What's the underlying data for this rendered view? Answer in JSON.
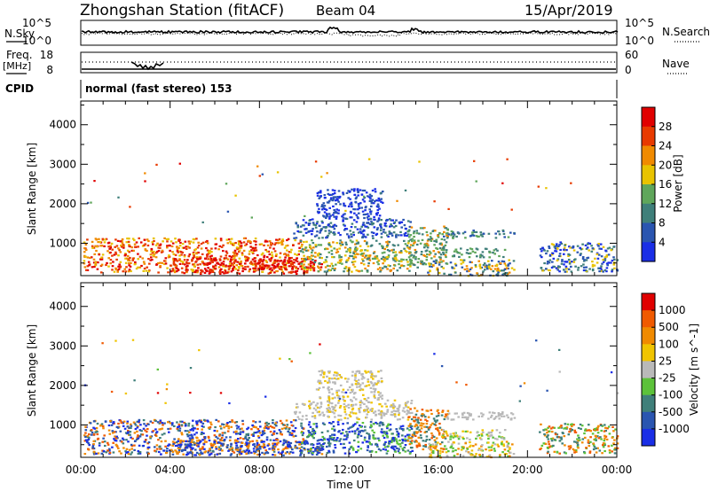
{
  "header": {
    "station": "Zhongshan Station (fitACF)",
    "beam": "Beam 04",
    "date": "15/Apr/2019"
  },
  "top_panels": {
    "nsky_label": "N.Sky",
    "nsearch_label": "N.Search",
    "freq_label": "Freq.",
    "freq_unit": "[MHz]",
    "nave_label": "Nave",
    "cpid_label": "CPID",
    "cpid_text": "normal (fast stereo) 153",
    "noise_ticks_left": [
      "10^5",
      "10^0"
    ],
    "noise_ticks_right": [
      "10^5",
      "10^0"
    ],
    "freq_ticks": [
      "18",
      "8"
    ],
    "nave_ticks": [
      "60",
      "0"
    ]
  },
  "chart_data": [
    {
      "type": "heatmap",
      "name": "power",
      "ylabel": "Slant Range [km]",
      "xlabel": "",
      "yticks": [
        "1000",
        "2000",
        "3000",
        "4000"
      ],
      "ylim": [
        180,
        4600
      ],
      "xlim": [
        0,
        24
      ],
      "colorbar": {
        "label": "Power [dB]",
        "ticks": [
          "4",
          "8",
          "12",
          "16",
          "20",
          "24",
          "28"
        ],
        "colors": [
          "#1a2ee6",
          "#2a55b0",
          "#3f7f7a",
          "#5fa65b",
          "#e8c300",
          "#f08a00",
          "#e83a00",
          "#e00000"
        ]
      },
      "regions": [
        {
          "t0": 0.1,
          "t1": 10.0,
          "r0": 280,
          "r1": 1150,
          "levels": [
            4,
            5,
            6,
            7
          ]
        },
        {
          "t0": 4.0,
          "t1": 10.8,
          "r0": 250,
          "r1": 650,
          "levels": [
            6,
            7,
            7
          ]
        },
        {
          "t0": 9.8,
          "t1": 14.8,
          "r0": 300,
          "r1": 1100,
          "levels": [
            2,
            3,
            4,
            5
          ]
        },
        {
          "t0": 9.5,
          "t1": 14.8,
          "r0": 1150,
          "r1": 1650,
          "levels": [
            0,
            1,
            2
          ]
        },
        {
          "t0": 14.6,
          "t1": 16.4,
          "r0": 400,
          "r1": 1450,
          "levels": [
            2,
            3,
            5
          ]
        },
        {
          "t0": 15.5,
          "t1": 19.4,
          "r0": 200,
          "r1": 600,
          "levels": [
            1,
            2,
            4,
            5
          ]
        },
        {
          "t0": 16.2,
          "t1": 19.4,
          "r0": 1150,
          "r1": 1350,
          "levels": [
            1,
            2,
            3
          ]
        },
        {
          "t0": 16.0,
          "t1": 19.0,
          "r0": 650,
          "r1": 900,
          "levels": [
            2,
            3
          ]
        },
        {
          "t0": 20.5,
          "t1": 24.0,
          "r0": 300,
          "r1": 1050,
          "levels": [
            0,
            1,
            2,
            4
          ]
        },
        {
          "t0": 10.5,
          "t1": 13.5,
          "r0": 1650,
          "r1": 2400,
          "levels": [
            0,
            1
          ]
        }
      ]
    },
    {
      "type": "heatmap",
      "name": "velocity",
      "ylabel": "Slant Range [km]",
      "xlabel": "Time UT",
      "xticks": [
        "00:00",
        "04:00",
        "08:00",
        "12:00",
        "16:00",
        "20:00",
        "00:00"
      ],
      "yticks": [
        "1000",
        "2000",
        "3000",
        "4000"
      ],
      "ylim": [
        180,
        4600
      ],
      "xlim": [
        0,
        24
      ],
      "colorbar": {
        "label": "Velocity [m s^-1]",
        "ticks": [
          "1000",
          "500",
          "100",
          "25",
          "-25",
          "-100",
          "-500",
          "-1000"
        ],
        "colors": [
          "#1a2ee6",
          "#2a55b0",
          "#3f7f7a",
          "#5cc23a",
          "#b9b9b9",
          "#f0c400",
          "#f08a00",
          "#f05a00",
          "#e00000"
        ]
      },
      "regions": [
        {
          "t0": 0.1,
          "t1": 10.0,
          "r0": 280,
          "r1": 1150,
          "levels": [
            0,
            1,
            2,
            6,
            7
          ]
        },
        {
          "t0": 4.0,
          "t1": 10.8,
          "r0": 250,
          "r1": 650,
          "levels": [
            0,
            1,
            6
          ]
        },
        {
          "t0": 9.8,
          "t1": 14.8,
          "r0": 300,
          "r1": 1100,
          "levels": [
            0,
            1,
            2,
            3
          ]
        },
        {
          "t0": 9.5,
          "t1": 14.8,
          "r0": 1150,
          "r1": 1650,
          "levels": [
            4,
            4,
            5
          ]
        },
        {
          "t0": 14.6,
          "t1": 16.4,
          "r0": 400,
          "r1": 1450,
          "levels": [
            2,
            6,
            7
          ]
        },
        {
          "t0": 15.5,
          "t1": 19.4,
          "r0": 200,
          "r1": 600,
          "levels": [
            4,
            5,
            6,
            3
          ]
        },
        {
          "t0": 16.2,
          "t1": 19.4,
          "r0": 1150,
          "r1": 1350,
          "levels": [
            4,
            4
          ]
        },
        {
          "t0": 16.0,
          "t1": 19.0,
          "r0": 650,
          "r1": 900,
          "levels": [
            4,
            3,
            5
          ]
        },
        {
          "t0": 20.5,
          "t1": 24.0,
          "r0": 300,
          "r1": 1050,
          "levels": [
            2,
            3,
            6,
            7
          ]
        },
        {
          "t0": 10.5,
          "t1": 13.5,
          "r0": 1650,
          "r1": 2400,
          "levels": [
            4,
            4,
            5
          ]
        }
      ]
    }
  ]
}
